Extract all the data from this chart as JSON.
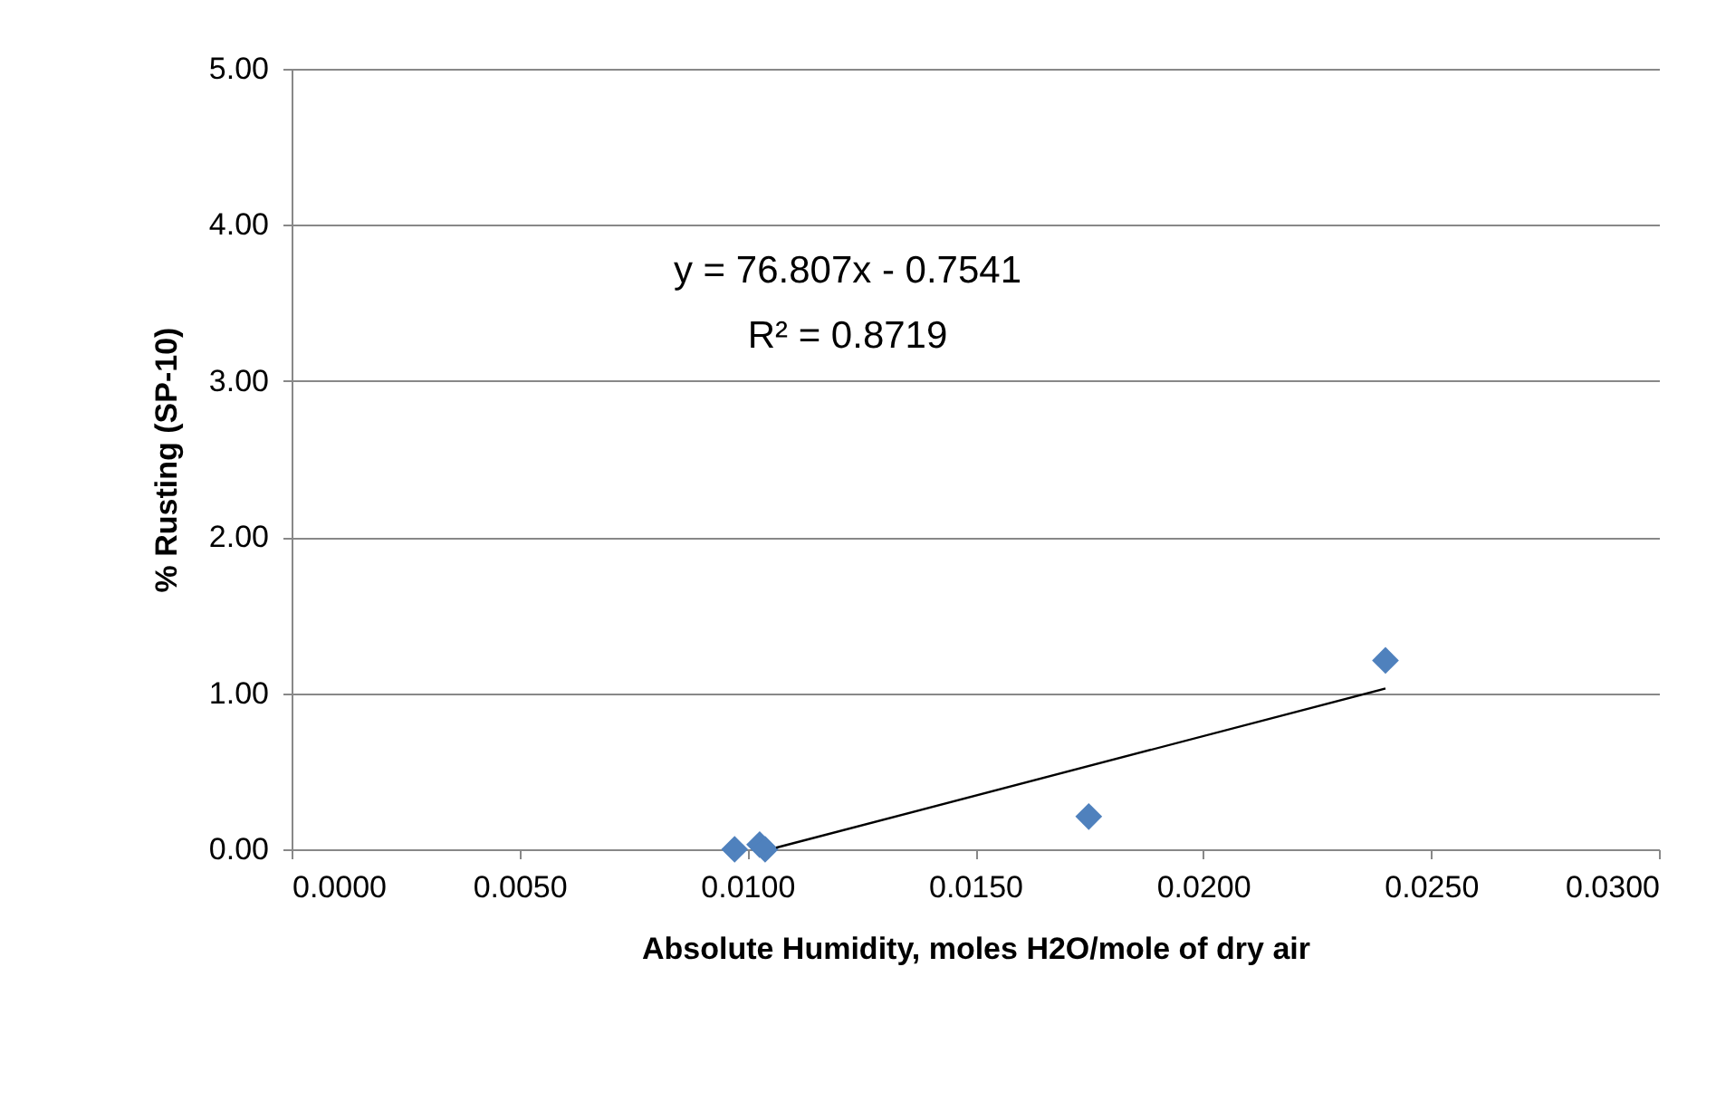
{
  "chart_data": {
    "type": "scatter",
    "xlabel": "Absolute Humidity, moles H2O/mole of dry air",
    "ylabel": "% Rusting (SP-10)",
    "series": [
      {
        "color": "#4f81bd",
        "marker": "diamond",
        "x": [
          0.00972,
          0.01027,
          0.01039,
          0.01749,
          0.024
        ],
        "values": [
          0.0,
          0.03,
          0.0,
          0.21,
          1.21
        ]
      },
      {
        "type": "line",
        "color": "#000000",
        "marker": "none",
        "line_style": "solid",
        "x": [
          0.01063,
          0.024
        ],
        "values": [
          0.01,
          1.03
        ]
      }
    ],
    "xlim": [
      0,
      0.03
    ],
    "xticks": [
      {
        "value": 0,
        "label": "0.0000"
      },
      {
        "value": 0.005,
        "label": "0.0050"
      },
      {
        "value": 0.01,
        "label": "0.0100"
      },
      {
        "value": 0.015,
        "label": "0.0150"
      },
      {
        "value": 0.02,
        "label": "0.0200"
      },
      {
        "value": 0.025,
        "label": "0.0250"
      },
      {
        "value": 0.03,
        "label": "0.0300"
      }
    ],
    "ylim": [
      0,
      5
    ],
    "yticks": [
      {
        "value": 0,
        "label": "0.00"
      },
      {
        "value": 1,
        "label": "1.00"
      },
      {
        "value": 2,
        "label": "2.00"
      },
      {
        "value": 3,
        "label": "3.00"
      },
      {
        "value": 4,
        "label": "4.00"
      },
      {
        "value": 5,
        "label": "5.00"
      }
    ],
    "grid": "y",
    "annotations": [
      "y = 76.807x - 0.7541",
      "R² = 0.8719"
    ]
  }
}
